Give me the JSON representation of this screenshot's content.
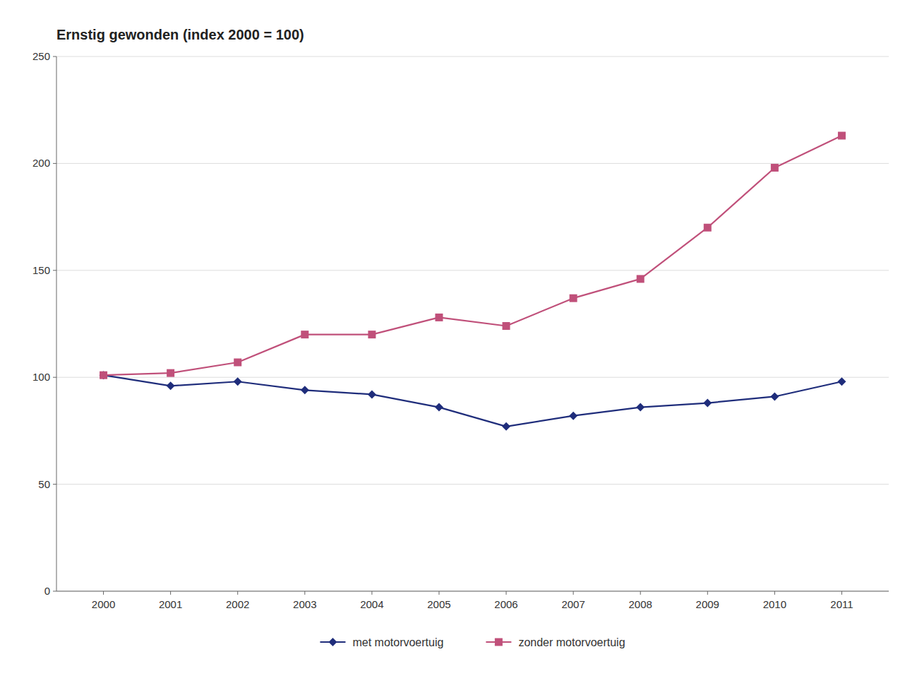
{
  "chart_data": {
    "type": "line",
    "title": "Ernstig gewonden (index 2000 = 100)",
    "x": [
      2000,
      2001,
      2002,
      2003,
      2004,
      2005,
      2006,
      2007,
      2008,
      2009,
      2010,
      2011
    ],
    "series": [
      {
        "name": "met motorvoertuig",
        "color": "#1f2d7b",
        "marker": "diamond",
        "values": [
          101,
          96,
          98,
          94,
          92,
          86,
          77,
          82,
          86,
          88,
          91,
          98
        ]
      },
      {
        "name": "zonder motorvoertuig",
        "color": "#c0507a",
        "marker": "square",
        "values": [
          101,
          102,
          107,
          120,
          120,
          128,
          124,
          137,
          146,
          170,
          198,
          213
        ]
      }
    ],
    "xlim": [
      1999.3,
      2011.7
    ],
    "xticks": [
      2000,
      2001,
      2002,
      2003,
      2004,
      2005,
      2006,
      2007,
      2008,
      2009,
      2010,
      2011
    ],
    "ylim": [
      0,
      250
    ],
    "yticks": [
      0,
      50,
      100,
      150,
      200,
      250
    ],
    "grid": true,
    "legend": "bottom"
  }
}
